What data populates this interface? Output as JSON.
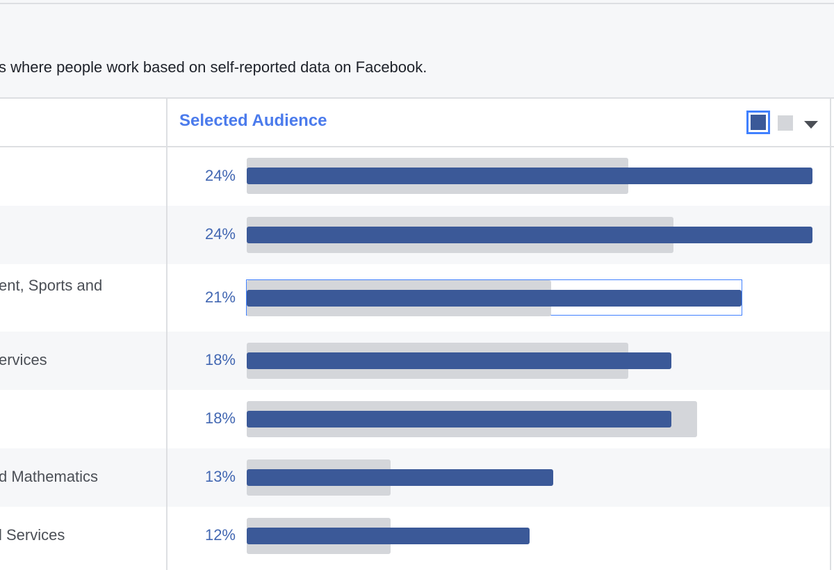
{
  "description": "s where people work based on self-reported data on Facebook.",
  "header": {
    "title": "Selected Audience",
    "selected_toggle_color": "#3b5998",
    "compare_toggle_color": "#d4d6da",
    "caret_icon": "chevron-down-icon"
  },
  "colors": {
    "selected_bar": "#3b5998",
    "compare_bar": "#d4d6da",
    "title": "#4b7bec",
    "percent": "#4267b2"
  },
  "rows": [
    {
      "label": "",
      "percent": "24%",
      "selected_value": 24,
      "compare_value": 16.2
    },
    {
      "label": "",
      "percent": "24%",
      "selected_value": 24,
      "compare_value": 18.1
    },
    {
      "label": "ent, Sports and",
      "percent": "21%",
      "selected_value": 21,
      "compare_value": 12.9,
      "highlighted": true
    },
    {
      "label": "ervices",
      "percent": "18%",
      "selected_value": 18,
      "compare_value": 16.2
    },
    {
      "label": "",
      "percent": "18%",
      "selected_value": 18,
      "compare_value": 19.1
    },
    {
      "label": "d Mathematics",
      "percent": "13%",
      "selected_value": 13,
      "compare_value": 6.1
    },
    {
      "label": "l Services",
      "percent": "12%",
      "selected_value": 12,
      "compare_value": 6.1
    }
  ]
}
